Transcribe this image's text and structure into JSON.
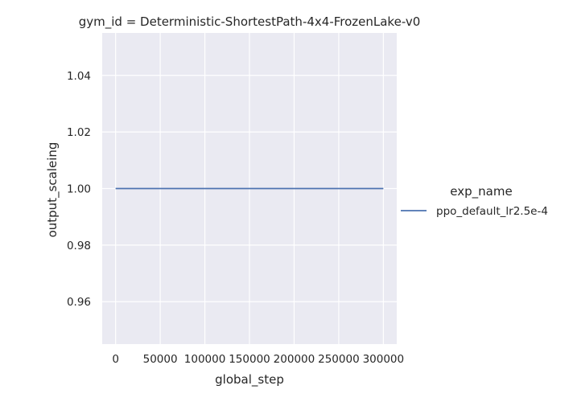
{
  "chart_data": {
    "type": "line",
    "title": "gym_id = Deterministic-ShortestPath-4x4-FrozenLake-v0",
    "xlabel": "global_step",
    "ylabel": "output_scaleing",
    "xlim": [
      -15000,
      315000
    ],
    "ylim": [
      0.945,
      1.055
    ],
    "xticks": [
      0,
      50000,
      100000,
      150000,
      200000,
      250000,
      300000
    ],
    "xtick_labels": [
      "0",
      "50000",
      "100000",
      "150000",
      "200000",
      "250000",
      "300000"
    ],
    "yticks": [
      0.96,
      0.98,
      1.0,
      1.02,
      1.04
    ],
    "ytick_labels": [
      "0.96",
      "0.98",
      "1.00",
      "1.02",
      "1.04"
    ],
    "grid": true,
    "legend": {
      "title": "exp_name",
      "placement": "right"
    },
    "series": [
      {
        "name": "ppo_default_lr2.5e-4",
        "color": "#4c72b0",
        "x": [
          0,
          300000
        ],
        "y": [
          1.0,
          1.0
        ]
      }
    ]
  }
}
